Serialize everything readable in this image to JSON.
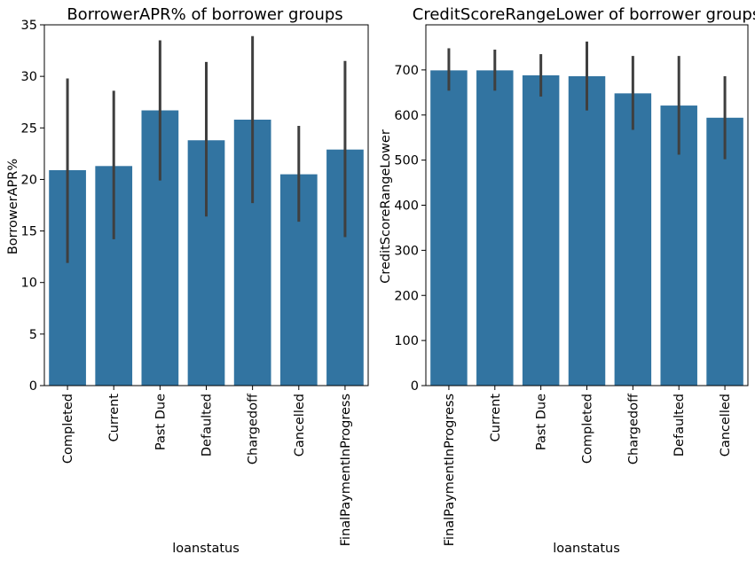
{
  "chart_data": [
    {
      "type": "bar",
      "title": "BorrowerAPR% of borrower groups",
      "xlabel": "loanstatus",
      "ylabel": "BorrowerAPR%",
      "categories": [
        "Completed",
        "Current",
        "Past Due",
        "Defaulted",
        "Chargedoff",
        "Cancelled",
        "FinalPaymentInProgress"
      ],
      "values": [
        20.9,
        21.3,
        26.7,
        23.8,
        25.8,
        20.5,
        22.9
      ],
      "error_low": [
        11.9,
        14.2,
        19.9,
        16.4,
        17.7,
        15.9,
        14.4
      ],
      "error_high": [
        29.8,
        28.6,
        33.5,
        31.4,
        33.9,
        25.2,
        31.5
      ],
      "ylim": [
        0,
        35
      ],
      "yticks": [
        0,
        5,
        10,
        15,
        20,
        25,
        30,
        35
      ],
      "bar_color": "#3274a1",
      "error_color": "#3f3f3f",
      "grid": false
    },
    {
      "type": "bar",
      "title": "CreditScoreRangeLower of borrower groups",
      "xlabel": "loanstatus",
      "ylabel": "CreditScoreRangeLower",
      "categories": [
        "FinalPaymentInProgress",
        "Current",
        "Past Due",
        "Completed",
        "Chargedoff",
        "Defaulted",
        "Cancelled"
      ],
      "values": [
        699,
        699,
        688,
        686,
        648,
        621,
        594
      ],
      "error_low": [
        654,
        654,
        641,
        610,
        567,
        512,
        502
      ],
      "error_high": [
        748,
        745,
        735,
        763,
        731,
        731,
        686
      ],
      "ylim": [
        0,
        800
      ],
      "yticks": [
        0,
        100,
        200,
        300,
        400,
        500,
        600,
        700
      ],
      "bar_color": "#3274a1",
      "error_color": "#3f3f3f",
      "grid": false
    }
  ]
}
